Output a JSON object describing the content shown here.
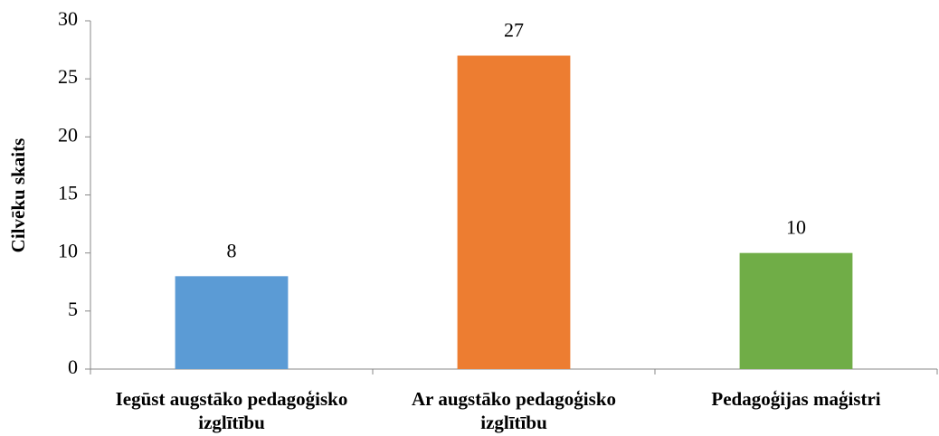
{
  "chart_data": {
    "type": "bar",
    "y_label": "Cilvēku skaits",
    "categories": [
      "Iegūst augstāko pedagoģisko izglītību",
      "Ar augstāko pedagoģisko izglītību",
      "Pedagoģijas maģistri"
    ],
    "values": [
      8,
      27,
      10
    ],
    "colors": [
      "#5b9bd5",
      "#ed7d31",
      "#70ad47"
    ],
    "ylim": [
      0,
      30
    ],
    "yticks": [
      0,
      5,
      10,
      15,
      20,
      25,
      30
    ],
    "grid": false
  }
}
